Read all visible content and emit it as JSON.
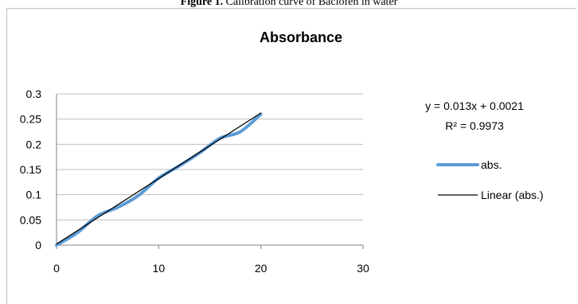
{
  "caption": {
    "label": "Figure 1.",
    "text": "Calibration curve of Baclofen in water"
  },
  "chart_data": {
    "type": "scatter",
    "title": "Absorbance",
    "xlabel": "",
    "ylabel": "",
    "xlim": [
      0,
      30
    ],
    "ylim": [
      0,
      0.3
    ],
    "x_ticks": [
      "0",
      "10",
      "20",
      "30"
    ],
    "y_ticks": [
      "0",
      "0.05",
      "0.1",
      "0.15",
      "0.2",
      "0.25",
      "0.3"
    ],
    "grid": true,
    "legend_position": "right",
    "series": [
      {
        "name": "abs.",
        "color": "#5b9bd5",
        "smooth": true,
        "x": [
          0,
          2,
          4,
          6,
          8,
          10,
          12,
          14,
          16,
          18,
          20
        ],
        "y": [
          0,
          0.024,
          0.058,
          0.075,
          0.098,
          0.133,
          0.157,
          0.183,
          0.212,
          0.225,
          0.26
        ]
      }
    ],
    "trendline": {
      "name": "Linear (abs.)",
      "color": "#000000",
      "slope": 0.013,
      "intercept": 0.0021,
      "x_range": [
        0,
        20
      ],
      "equation": "y = 0.013x + 0.0021",
      "r_squared": "R² = 0.9973"
    }
  }
}
